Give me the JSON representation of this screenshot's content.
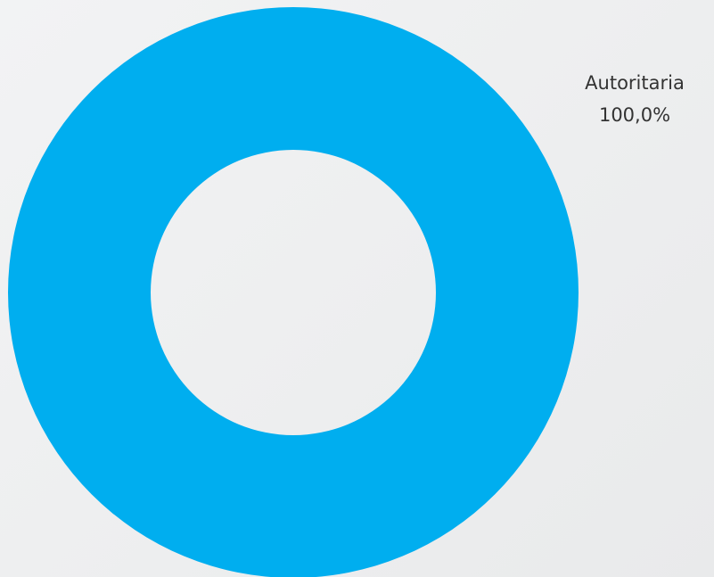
{
  "chart_data": {
    "type": "pie",
    "variant": "donut",
    "title": "",
    "slices": [
      {
        "label": "Autoritaria",
        "value": 100.0,
        "display_value": "100,0%",
        "color": "#00aeef"
      }
    ],
    "legend": "none",
    "data_labels": "outside-top-right"
  },
  "colors": {
    "background": "#efeff0",
    "label_text": "#333333"
  }
}
